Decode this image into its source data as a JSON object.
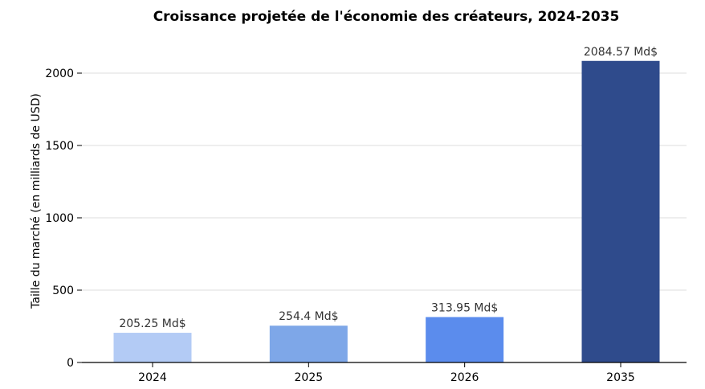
{
  "chart_data": {
    "type": "bar",
    "title": "Croissance projetée de l'économie des créateurs, 2024-2035",
    "xlabel": "",
    "ylabel": "Taille du marché (en milliards de USD)",
    "categories": [
      "2024",
      "2025",
      "2026",
      "2035"
    ],
    "values": [
      205.25,
      254.4,
      313.95,
      2084.57
    ],
    "data_labels": [
      "205.25 Md$",
      "254.4 Md$",
      "313.95 Md$",
      "2084.57 Md$"
    ],
    "colors": [
      "#b3cbf5",
      "#7ea7e8",
      "#5b8ced",
      "#2f4b8c"
    ],
    "ylim": [
      0,
      2200
    ],
    "yticks": [
      0,
      500,
      1000,
      1500,
      2000
    ],
    "grid": true,
    "legend": "none"
  }
}
